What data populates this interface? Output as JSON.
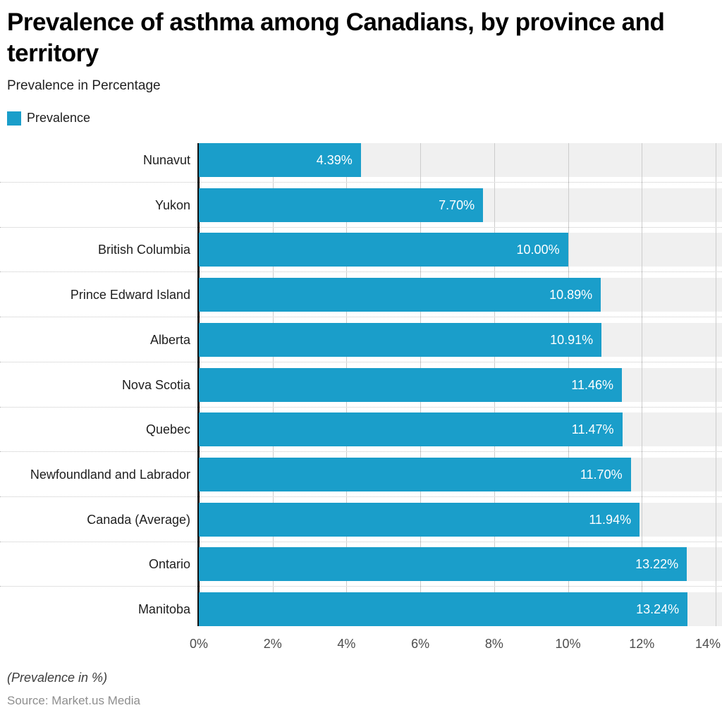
{
  "header": {
    "title_lines": [
      "Prevalence of asthma among Canadians, by province and",
      "territory"
    ],
    "subtitle": "Prevalence in Percentage"
  },
  "legend": {
    "label": "Prevalence",
    "color": "#1a9eca"
  },
  "chart_data": {
    "type": "bar",
    "orientation": "horizontal",
    "title": "Prevalence of asthma among Canadians, by province and territory",
    "series_name": "Prevalence",
    "categories": [
      "Nunavut",
      "Yukon",
      "British Columbia",
      "Prince Edward Island",
      "Alberta",
      "Nova Scotia",
      "Quebec",
      "Newfoundland and Labrador",
      "Canada (Average)",
      "Ontario",
      "Manitoba"
    ],
    "values": [
      4.39,
      7.7,
      10.0,
      10.89,
      10.91,
      11.46,
      11.47,
      11.7,
      11.94,
      13.22,
      13.24
    ],
    "value_labels": [
      "4.39%",
      "7.70%",
      "10.00%",
      "10.89%",
      "10.91%",
      "11.46%",
      "11.47%",
      "11.70%",
      "11.94%",
      "13.22%",
      "13.24%"
    ],
    "xlabel": "",
    "ylabel": "",
    "xlim": [
      0,
      14
    ],
    "x_ticks": [
      "0%",
      "2%",
      "4%",
      "6%",
      "8%",
      "10%",
      "12%",
      "14%"
    ],
    "grid": true,
    "legend_position": "top-left",
    "bar_color": "#1a9eca",
    "band_color": "#f0f0f0",
    "gridline_color": "#cccccc",
    "value_label_color": "#ffffff"
  },
  "footer": {
    "note": "(Prevalence in %)",
    "source": "Source: Market.us Media"
  }
}
